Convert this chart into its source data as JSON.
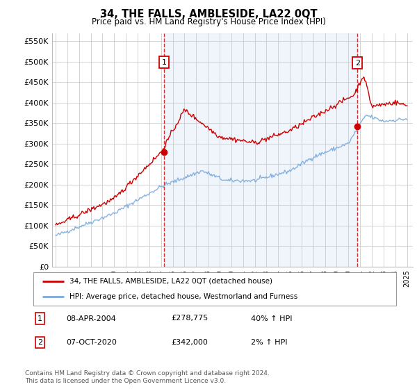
{
  "title": "34, THE FALLS, AMBLESIDE, LA22 0QT",
  "subtitle": "Price paid vs. HM Land Registry's House Price Index (HPI)",
  "ylabel_ticks": [
    "£0",
    "£50K",
    "£100K",
    "£150K",
    "£200K",
    "£250K",
    "£300K",
    "£350K",
    "£400K",
    "£450K",
    "£500K",
    "£550K"
  ],
  "ytick_values": [
    0,
    50000,
    100000,
    150000,
    200000,
    250000,
    300000,
    350000,
    400000,
    450000,
    500000,
    550000
  ],
  "ylim": [
    0,
    570000
  ],
  "xlim_start": 1994.7,
  "xlim_end": 2025.5,
  "xtick_years": [
    1995,
    1996,
    1997,
    1998,
    1999,
    2000,
    2001,
    2002,
    2003,
    2004,
    2005,
    2006,
    2007,
    2008,
    2009,
    2010,
    2011,
    2012,
    2013,
    2014,
    2015,
    2016,
    2017,
    2018,
    2019,
    2020,
    2021,
    2022,
    2023,
    2024,
    2025
  ],
  "sale1_x": 2004.27,
  "sale1_y": 278775,
  "sale2_x": 2020.77,
  "sale2_y": 342000,
  "sale1_label": "1",
  "sale2_label": "2",
  "vline_color": "#cc0000",
  "hpi_line_color": "#7aaadd",
  "price_line_color": "#cc0000",
  "fill_color": "#ddeeff",
  "legend_line1": "34, THE FALLS, AMBLESIDE, LA22 0QT (detached house)",
  "legend_line2": "HPI: Average price, detached house, Westmorland and Furness",
  "table_row1": [
    "1",
    "08-APR-2004",
    "£278,775",
    "40% ↑ HPI"
  ],
  "table_row2": [
    "2",
    "07-OCT-2020",
    "£342,000",
    "2% ↑ HPI"
  ],
  "footnote": "Contains HM Land Registry data © Crown copyright and database right 2024.\nThis data is licensed under the Open Government Licence v3.0.",
  "background_color": "#ffffff",
  "grid_color": "#cccccc"
}
